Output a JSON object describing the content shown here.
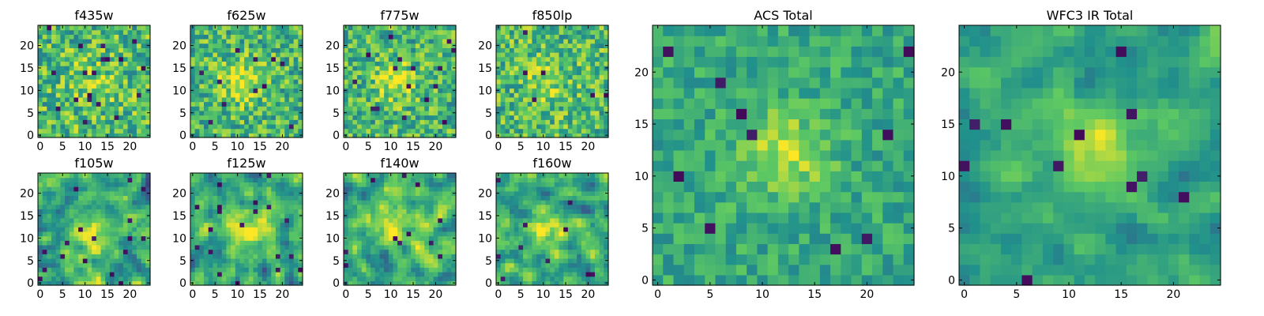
{
  "figure": {
    "colormap": "viridis",
    "colormap_stops": [
      "#440154",
      "#3b528b",
      "#21918c",
      "#5ec962",
      "#fde725"
    ],
    "axis_color": "#000000",
    "background": "#ffffff"
  },
  "chart_data": [
    {
      "type": "heatmap",
      "title": "f435w",
      "grid_size": 25,
      "xlim": [
        -0.5,
        24.5
      ],
      "ylim": [
        -0.5,
        24.5
      ],
      "xticks": [
        0,
        5,
        10,
        15,
        20
      ],
      "yticks": [
        0,
        5,
        10,
        15,
        20
      ],
      "xlabel": "",
      "ylabel": "",
      "seed": 11,
      "center": [
        12,
        12
      ],
      "peak": 0.15,
      "sigma": 4.0,
      "noise": 0.75,
      "outlier_rate": 0.025,
      "smooth": 0,
      "base_level": 0.68
    },
    {
      "type": "heatmap",
      "title": "f625w",
      "grid_size": 25,
      "xlim": [
        -0.5,
        24.5
      ],
      "ylim": [
        -0.5,
        24.5
      ],
      "xticks": [
        0,
        5,
        10,
        15,
        20
      ],
      "yticks": [
        0,
        5,
        10,
        15,
        20
      ],
      "xlabel": "",
      "ylabel": "",
      "seed": 23,
      "center": [
        11,
        12
      ],
      "peak": 0.28,
      "sigma": 3.5,
      "noise": 0.7,
      "outlier_rate": 0.025,
      "smooth": 0,
      "base_level": 0.66
    },
    {
      "type": "heatmap",
      "title": "f775w",
      "grid_size": 25,
      "xlim": [
        -0.5,
        24.5
      ],
      "ylim": [
        -0.5,
        24.5
      ],
      "xticks": [
        0,
        5,
        10,
        15,
        20
      ],
      "yticks": [
        0,
        5,
        10,
        15,
        20
      ],
      "xlabel": "",
      "ylabel": "",
      "seed": 37,
      "center": [
        11,
        12
      ],
      "peak": 0.3,
      "sigma": 3.0,
      "noise": 0.7,
      "outlier_rate": 0.02,
      "smooth": 0,
      "base_level": 0.66
    },
    {
      "type": "heatmap",
      "title": "f850lp",
      "grid_size": 25,
      "xlim": [
        -0.5,
        24.5
      ],
      "ylim": [
        -0.5,
        24.5
      ],
      "xticks": [
        0,
        5,
        10,
        15,
        20
      ],
      "yticks": [
        0,
        5,
        10,
        15,
        20
      ],
      "xlabel": "",
      "ylabel": "",
      "seed": 41,
      "center": [
        11,
        12
      ],
      "peak": 0.15,
      "sigma": 3.5,
      "noise": 0.72,
      "outlier_rate": 0.02,
      "smooth": 0,
      "base_level": 0.68
    },
    {
      "type": "heatmap",
      "title": "f105w",
      "grid_size": 25,
      "xlim": [
        -0.5,
        24.5
      ],
      "ylim": [
        -0.5,
        24.5
      ],
      "xticks": [
        0,
        5,
        10,
        15,
        20
      ],
      "yticks": [
        0,
        5,
        10,
        15,
        20
      ],
      "xlabel": "",
      "ylabel": "",
      "seed": 53,
      "center": [
        12,
        9
      ],
      "peak": 0.3,
      "sigma": 3.5,
      "noise": 0.85,
      "outlier_rate": 0.02,
      "smooth": 1,
      "base_level": 0.6
    },
    {
      "type": "heatmap",
      "title": "f125w",
      "grid_size": 25,
      "xlim": [
        -0.5,
        24.5
      ],
      "ylim": [
        -0.5,
        24.5
      ],
      "xticks": [
        0,
        5,
        10,
        15,
        20
      ],
      "yticks": [
        0,
        5,
        10,
        15,
        20
      ],
      "xlabel": "",
      "ylabel": "",
      "seed": 67,
      "center": [
        13,
        13
      ],
      "peak": 0.3,
      "sigma": 3.5,
      "noise": 0.85,
      "outlier_rate": 0.02,
      "smooth": 1,
      "base_level": 0.6
    },
    {
      "type": "heatmap",
      "title": "f140w",
      "grid_size": 25,
      "xlim": [
        -0.5,
        24.5
      ],
      "ylim": [
        -0.5,
        24.5
      ],
      "xticks": [
        0,
        5,
        10,
        15,
        20
      ],
      "yticks": [
        0,
        5,
        10,
        15,
        20
      ],
      "xlabel": "",
      "ylabel": "",
      "seed": 79,
      "center": [
        11,
        13
      ],
      "peak": 0.32,
      "sigma": 3.5,
      "noise": 0.85,
      "outlier_rate": 0.015,
      "smooth": 1,
      "base_level": 0.62
    },
    {
      "type": "heatmap",
      "title": "f160w",
      "grid_size": 25,
      "xlim": [
        -0.5,
        24.5
      ],
      "ylim": [
        -0.5,
        24.5
      ],
      "xticks": [
        0,
        5,
        10,
        15,
        20
      ],
      "yticks": [
        0,
        5,
        10,
        15,
        20
      ],
      "xlabel": "",
      "ylabel": "",
      "seed": 97,
      "center": [
        12,
        13
      ],
      "peak": 0.3,
      "sigma": 3.5,
      "noise": 0.85,
      "outlier_rate": 0.02,
      "smooth": 1,
      "base_level": 0.6
    },
    {
      "type": "heatmap",
      "title": "ACS Total",
      "grid_size": 25,
      "xlim": [
        -0.5,
        24.5
      ],
      "ylim": [
        -0.5,
        24.5
      ],
      "xticks": [
        0,
        5,
        10,
        15,
        20
      ],
      "yticks": [
        0,
        5,
        10,
        15,
        20
      ],
      "xlabel": "",
      "ylabel": "",
      "seed": 131,
      "center": [
        12,
        12
      ],
      "peak": 0.3,
      "sigma": 3.0,
      "noise": 0.42,
      "outlier_rate": 0.018,
      "smooth": 0,
      "base_level": 0.6
    },
    {
      "type": "heatmap",
      "title": "WFC3 IR Total",
      "grid_size": 25,
      "xlim": [
        -0.5,
        24.5
      ],
      "ylim": [
        -0.5,
        24.5
      ],
      "xticks": [
        0,
        5,
        10,
        15,
        20
      ],
      "yticks": [
        0,
        5,
        10,
        15,
        20
      ],
      "xlabel": "",
      "ylabel": "",
      "seed": 173,
      "center": [
        12,
        12
      ],
      "peak": 0.35,
      "sigma": 3.5,
      "noise": 0.55,
      "outlier_rate": 0.02,
      "smooth": 1,
      "base_level": 0.55
    }
  ]
}
